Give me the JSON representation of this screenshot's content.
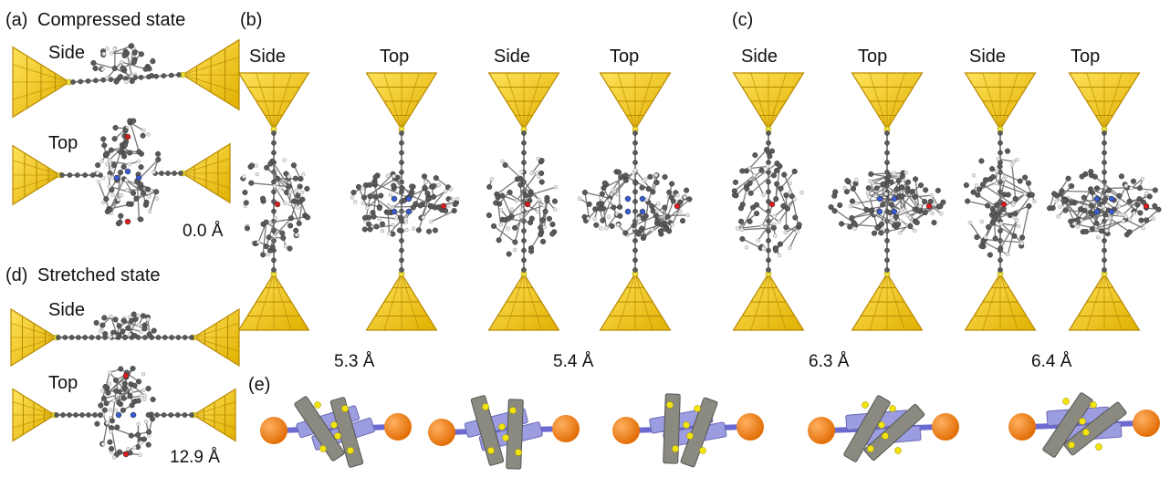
{
  "panels": {
    "a": {
      "label": "(a)",
      "title": "Compressed state",
      "side": "Side",
      "top": "Top",
      "distance": "0.0 Å"
    },
    "b": {
      "label": "(b)",
      "views": [
        "Side",
        "Top",
        "Side",
        "Top"
      ],
      "distances": [
        "5.3 Å",
        "5.4 Å"
      ]
    },
    "c": {
      "label": "(c)",
      "views": [
        "Side",
        "Top",
        "Side",
        "Top"
      ],
      "distances": [
        "6.3 Å",
        "6.4 Å"
      ]
    },
    "d": {
      "label": "(d)",
      "title": "Stretched state",
      "side": "Side",
      "top": "Top",
      "distance": "12.9 Å"
    },
    "e": {
      "label": "(e)"
    }
  },
  "colors": {
    "gold": "#f2c81a",
    "gold_dark": "#b88a00",
    "carbon": "#5a5a5a",
    "hydrogen": "#e8e8e8",
    "nitrogen": "#3a5bd0",
    "oxygen": "#d92020",
    "sulfur": "#f0e040",
    "schematic_blue": "#9c9ce0",
    "schematic_grey": "#8a8a80",
    "schematic_orange": "#f08010",
    "schematic_yellow": "#f2e410"
  }
}
